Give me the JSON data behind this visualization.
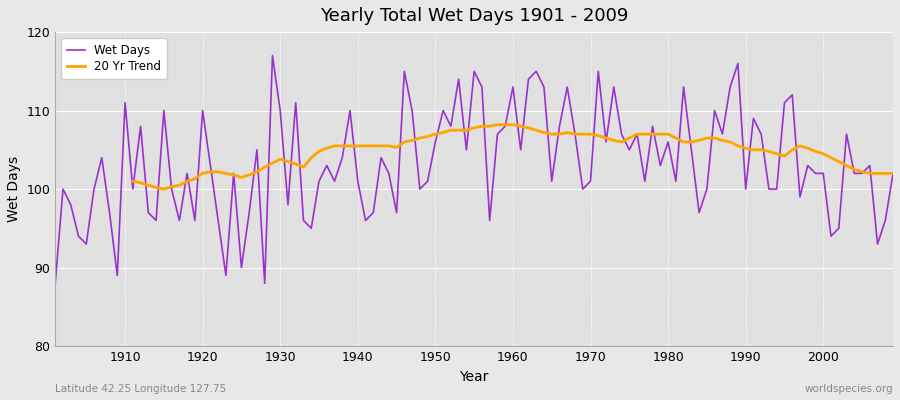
{
  "title": "Yearly Total Wet Days 1901 - 2009",
  "xlabel": "Year",
  "ylabel": "Wet Days",
  "footnote_left": "Latitude 42.25 Longitude 127.75",
  "footnote_right": "worldspecies.org",
  "legend_wet": "Wet Days",
  "legend_trend": "20 Yr Trend",
  "ylim": [
    80,
    120
  ],
  "yticks": [
    80,
    90,
    100,
    110,
    120
  ],
  "line_color_wet": "#9b30d0",
  "line_color_trend": "#ffa500",
  "fig_bg_color": "#e8e8e8",
  "plot_bg_color": "#e0e0e0",
  "years": [
    1901,
    1902,
    1903,
    1904,
    1905,
    1906,
    1907,
    1908,
    1909,
    1910,
    1911,
    1912,
    1913,
    1914,
    1915,
    1916,
    1917,
    1918,
    1919,
    1920,
    1921,
    1922,
    1923,
    1924,
    1925,
    1926,
    1927,
    1928,
    1929,
    1930,
    1931,
    1932,
    1933,
    1934,
    1935,
    1936,
    1937,
    1938,
    1939,
    1940,
    1941,
    1942,
    1943,
    1944,
    1945,
    1946,
    1947,
    1948,
    1949,
    1950,
    1951,
    1952,
    1953,
    1954,
    1955,
    1956,
    1957,
    1958,
    1959,
    1960,
    1961,
    1962,
    1963,
    1964,
    1965,
    1966,
    1967,
    1968,
    1969,
    1970,
    1971,
    1972,
    1973,
    1974,
    1975,
    1976,
    1977,
    1978,
    1979,
    1980,
    1981,
    1982,
    1983,
    1984,
    1985,
    1986,
    1987,
    1988,
    1989,
    1990,
    1991,
    1992,
    1993,
    1994,
    1995,
    1996,
    1997,
    1998,
    1999,
    2000,
    2001,
    2002,
    2003,
    2004,
    2005,
    2006,
    2007,
    2008,
    2009
  ],
  "wet_days": [
    88,
    100,
    98,
    94,
    93,
    100,
    104,
    97,
    89,
    111,
    100,
    108,
    97,
    96,
    110,
    100,
    96,
    102,
    96,
    110,
    103,
    96,
    89,
    102,
    90,
    97,
    105,
    88,
    117,
    110,
    98,
    111,
    96,
    95,
    101,
    103,
    101,
    104,
    110,
    101,
    96,
    97,
    104,
    102,
    97,
    115,
    110,
    100,
    101,
    106,
    110,
    108,
    114,
    105,
    115,
    113,
    96,
    107,
    108,
    113,
    105,
    114,
    115,
    113,
    101,
    108,
    113,
    107,
    100,
    101,
    115,
    106,
    113,
    107,
    105,
    107,
    101,
    108,
    103,
    106,
    101,
    113,
    105,
    97,
    100,
    110,
    107,
    113,
    116,
    100,
    109,
    107,
    100,
    100,
    111,
    112,
    99,
    103,
    102,
    102,
    94,
    95,
    107,
    102,
    102,
    103,
    93,
    96,
    102
  ],
  "trend_vals": [
    null,
    null,
    null,
    null,
    null,
    null,
    null,
    null,
    null,
    null,
    101.0,
    100.8,
    100.5,
    100.2,
    100.0,
    100.3,
    100.5,
    101.0,
    101.3,
    102.0,
    102.2,
    102.2,
    102.0,
    101.8,
    101.5,
    101.8,
    102.2,
    102.8,
    103.3,
    103.8,
    103.5,
    103.2,
    102.8,
    104.0,
    104.8,
    105.2,
    105.5,
    105.5,
    105.5,
    105.5,
    105.5,
    105.5,
    105.5,
    105.5,
    105.3,
    106.0,
    106.2,
    106.5,
    106.7,
    107.0,
    107.2,
    107.5,
    107.5,
    107.5,
    107.8,
    108.0,
    108.0,
    108.2,
    108.2,
    108.2,
    108.0,
    107.8,
    107.5,
    107.2,
    107.0,
    107.0,
    107.2,
    107.0,
    107.0,
    107.0,
    106.8,
    106.5,
    106.2,
    106.0,
    106.5,
    107.0,
    107.0,
    107.0,
    107.0,
    107.0,
    106.5,
    106.0,
    106.0,
    106.2,
    106.5,
    106.5,
    106.2,
    106.0,
    105.5,
    105.2,
    105.0,
    105.0,
    104.8,
    104.5,
    104.2,
    105.0,
    105.5,
    105.2,
    104.8,
    104.5,
    104.0,
    103.5,
    103.0,
    102.5,
    102.2,
    102.0,
    102.0,
    102.0,
    102.0
  ]
}
